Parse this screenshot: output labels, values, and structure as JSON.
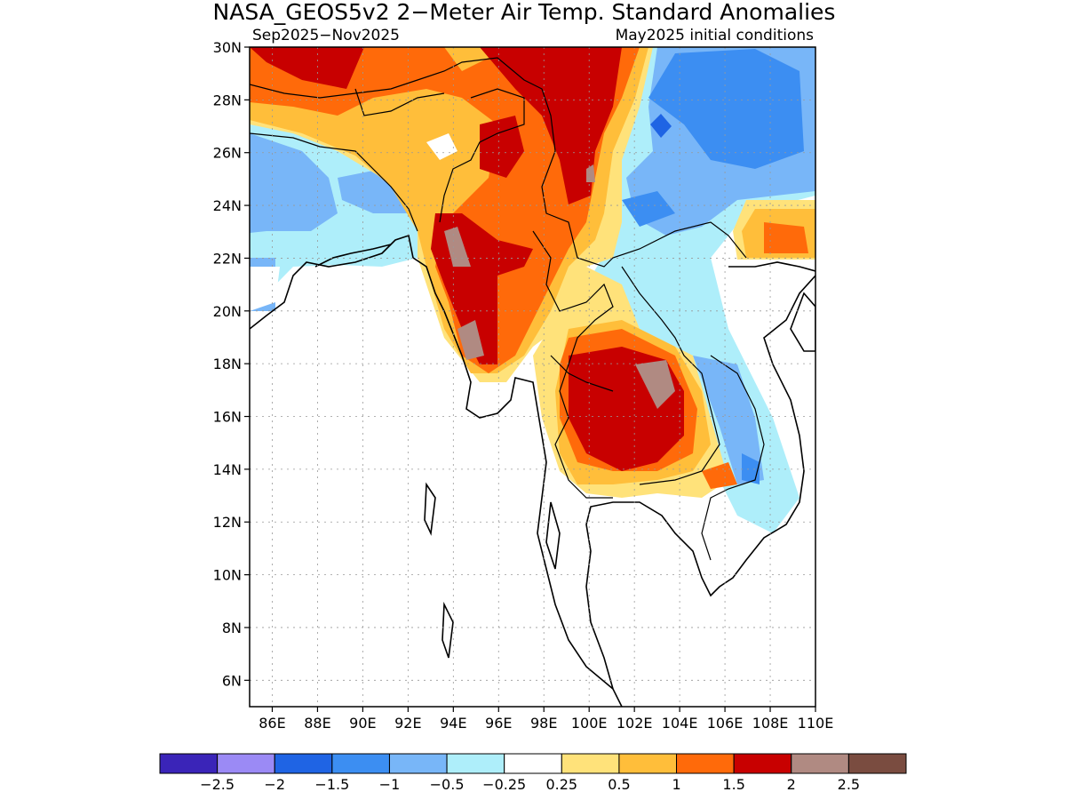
{
  "map": {
    "title": "NASA_GEOS5v2 2−Meter Air Temp. Standard Anomalies",
    "subtitle_left": "Sep2025−Nov2025",
    "subtitle_right": "May2025 initial conditions",
    "lat_ticks": [
      "30N",
      "28N",
      "26N",
      "24N",
      "22N",
      "20N",
      "18N",
      "16N",
      "14N",
      "12N",
      "10N",
      "8N",
      "6N"
    ],
    "lon_ticks": [
      "86E",
      "88E",
      "90E",
      "92E",
      "94E",
      "96E",
      "98E",
      "100E",
      "102E",
      "104E",
      "106E",
      "108E",
      "110E"
    ],
    "extent": {
      "lon_min": 85,
      "lon_max": 110,
      "lat_min": 5,
      "lat_max": 30
    }
  },
  "legend": {
    "colors": [
      "#3a24b8",
      "#9b8af5",
      "#1f64e4",
      "#3c8ef2",
      "#78b6f8",
      "#aeeefa",
      "#ffffff",
      "#ffe27a",
      "#ffbe3a",
      "#ff6a0a",
      "#c80000",
      "#b08a82",
      "#7a4c40"
    ],
    "labels": [
      "−2.5",
      "−2",
      "−1.5",
      "−1",
      "−0.5",
      "−0.25",
      "0.25",
      "0.5",
      "1",
      "1.5",
      "2",
      "2.5"
    ]
  }
}
